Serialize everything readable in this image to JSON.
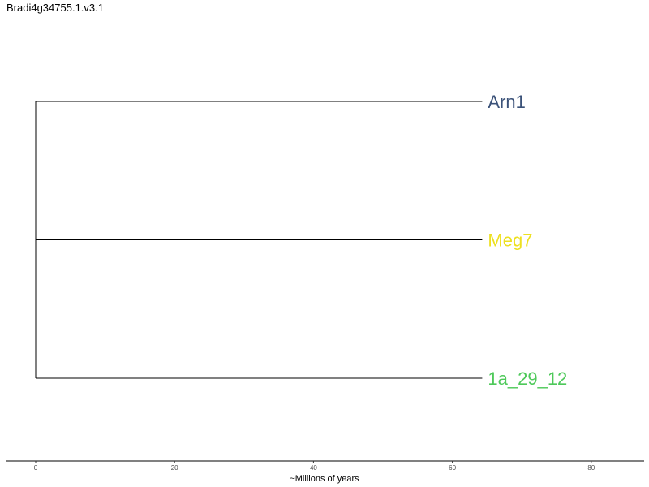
{
  "chart_data": {
    "type": "dendrogram",
    "title": "Bradi4g34755.1.v3.1",
    "xlabel": "~Millions of years",
    "xlim": [
      0,
      88
    ],
    "x_ticks": [
      0,
      20,
      40,
      60,
      80
    ],
    "root_age": 0,
    "leaves": [
      {
        "label": "Arn1",
        "x": 64.3,
        "color": "#3b5279"
      },
      {
        "label": "Meg7",
        "x": 64.3,
        "color": "#ede020"
      },
      {
        "label": "1a_29_12",
        "x": 64.3,
        "color": "#4ec95a"
      }
    ],
    "grid": false
  }
}
